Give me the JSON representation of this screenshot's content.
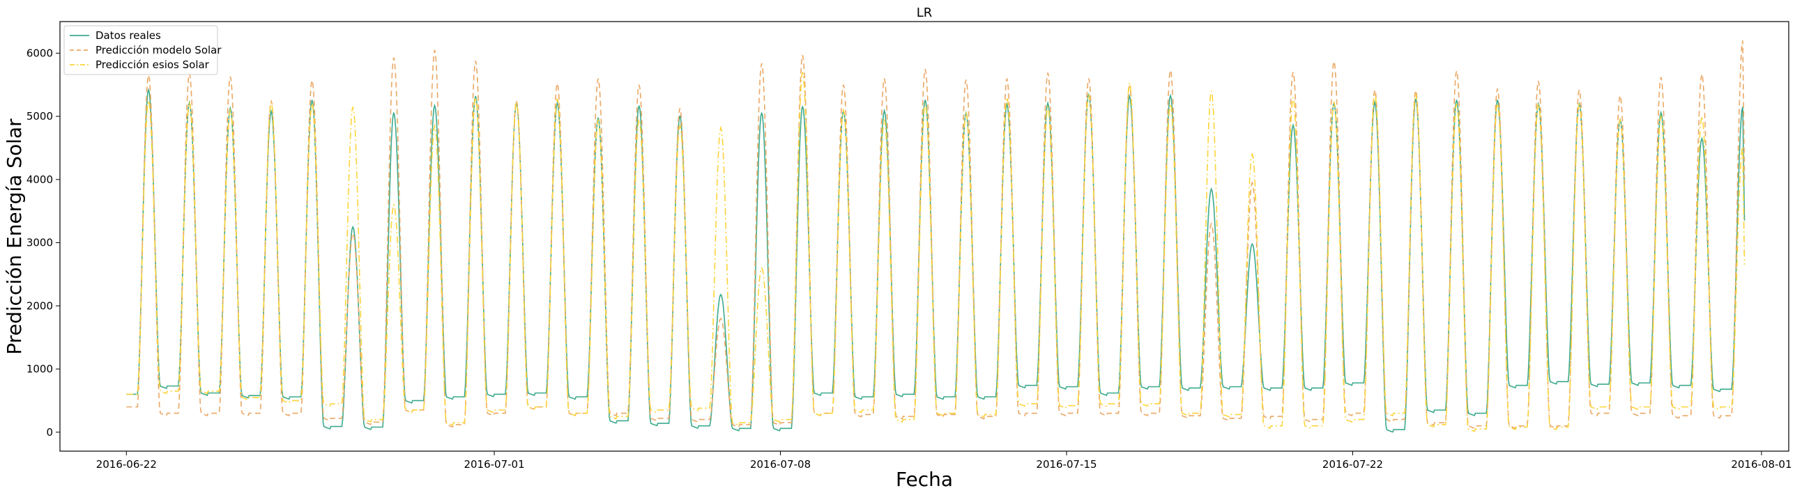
{
  "chart_data": {
    "type": "line",
    "title": "LR",
    "xlabel": "Fecha",
    "ylabel": "Predicción Energía Solar",
    "xlim": [
      "2016-06-20T09:00",
      "2016-08-01T16:00"
    ],
    "ylim": [
      -300,
      6500
    ],
    "x_ticks": [
      "2016-06-22",
      "2016-07-01",
      "2016-07-08",
      "2016-07-15",
      "2016-07-22",
      "2016-08-01"
    ],
    "y_ticks": [
      0,
      1000,
      2000,
      3000,
      4000,
      5000,
      6000
    ],
    "grid": false,
    "legend_position": "top-left",
    "x_start": "2016-06-22",
    "series": [
      {
        "name": "Datos reales",
        "color": "#3aaa8c",
        "dash": "solid",
        "night": [
          600,
          730,
          620,
          580,
          560,
          90,
          80,
          500,
          560,
          600,
          620,
          560,
          180,
          140,
          100,
          60,
          60,
          620,
          560,
          600,
          560,
          560,
          740,
          720,
          620,
          720,
          700,
          720,
          700,
          700,
          780,
          40,
          350,
          300,
          740,
          800,
          760,
          780,
          740,
          680,
          670,
          560,
          540,
          530,
          560,
          520,
          500
        ],
        "peaks": [
          5420,
          5220,
          5130,
          5080,
          5260,
          3250,
          5060,
          5170,
          5320,
          5210,
          5210,
          4980,
          5170,
          5010,
          2180,
          5060,
          5160,
          5090,
          5090,
          5260,
          5060,
          5190,
          5210,
          5360,
          5320,
          5330,
          3850,
          2980,
          4860,
          5210,
          5220,
          5280,
          5260,
          5260,
          5200,
          5200,
          4950,
          5060,
          4650,
          5150
        ],
        "end_value": 3350
      },
      {
        "name": "Predicción modelo Solar",
        "color": "#eaa864",
        "dash": "dashed",
        "night": [
          400,
          300,
          300,
          300,
          300,
          220,
          160,
          350,
          120,
          300,
          400,
          300,
          300,
          220,
          200,
          120,
          150,
          300,
          280,
          250,
          280,
          250,
          300,
          300,
          300,
          300,
          260,
          220,
          250,
          200,
          300,
          200,
          150,
          100,
          100,
          100,
          300,
          300,
          260,
          260,
          300,
          300,
          320,
          280,
          280,
          300,
          300
        ],
        "peaks": [
          5650,
          5680,
          5630,
          5250,
          5570,
          3150,
          5930,
          6050,
          5880,
          5250,
          5520,
          5600,
          5500,
          5130,
          1800,
          5840,
          5970,
          5500,
          5600,
          5750,
          5580,
          5600,
          5690,
          5600,
          5480,
          5730,
          3300,
          3950,
          5700,
          5870,
          5420,
          5410,
          5720,
          5440,
          5560,
          5420,
          5330,
          5620,
          5670,
          6200
        ],
        "end_value": 4000
      },
      {
        "name": "Predicción esios Solar",
        "color": "#fbd43a",
        "dash": "dashdot",
        "night": [
          600,
          650,
          650,
          550,
          500,
          450,
          200,
          350,
          150,
          350,
          400,
          300,
          250,
          350,
          380,
          150,
          200,
          300,
          350,
          200,
          300,
          280,
          450,
          420,
          450,
          450,
          300,
          280,
          100,
          100,
          200,
          300,
          120,
          50,
          80,
          80,
          400,
          400,
          400,
          400,
          300,
          300,
          200,
          300,
          250,
          300,
          300
        ],
        "peaks": [
          5250,
          5220,
          5100,
          5220,
          5200,
          5150,
          3600,
          4850,
          5300,
          5230,
          5280,
          4950,
          4950,
          4850,
          4820,
          2600,
          5700,
          5100,
          4950,
          5200,
          5050,
          5300,
          5150,
          5350,
          5530,
          5200,
          5400,
          4400,
          5300,
          5230,
          5350,
          5350,
          5200,
          5200,
          5200,
          5200,
          4950,
          5000,
          5000,
          4520
        ],
        "end_value": 2650
      }
    ]
  }
}
